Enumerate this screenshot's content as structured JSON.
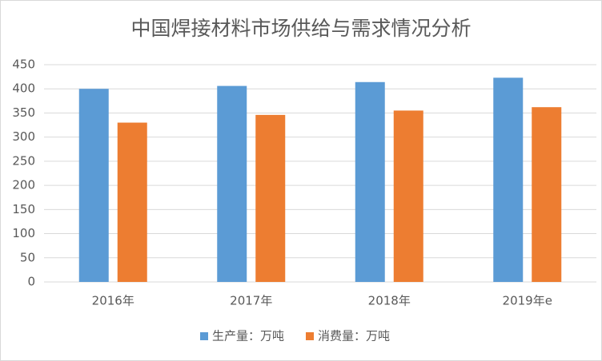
{
  "chart_data": {
    "type": "bar",
    "title": "中国焊接材料市场供给与需求情况分析",
    "categories": [
      "2016年",
      "2017年",
      "2018年",
      "2019年e"
    ],
    "series": [
      {
        "name": "生产量：万吨",
        "color": "#5b9bd5",
        "values": [
          400,
          406,
          414,
          423
        ]
      },
      {
        "name": "消费量：万吨",
        "color": "#ed7d31",
        "values": [
          330,
          346,
          355,
          362
        ]
      }
    ],
    "ylim": [
      0,
      450
    ],
    "yticks": [
      0,
      50,
      100,
      150,
      200,
      250,
      300,
      350,
      400,
      450
    ],
    "grid": true,
    "legend": "bottom"
  }
}
